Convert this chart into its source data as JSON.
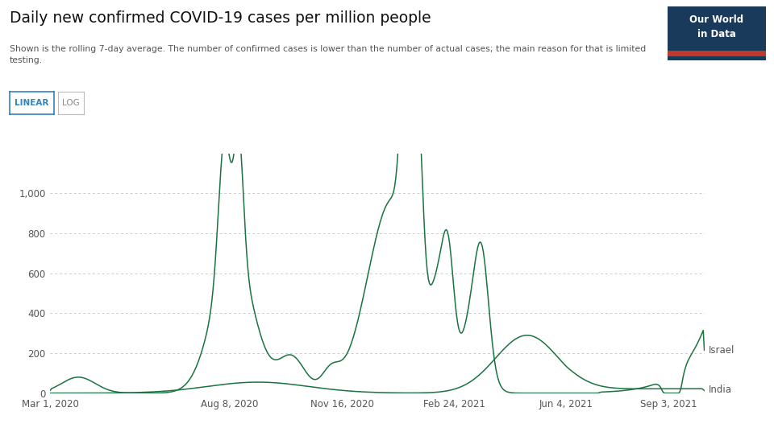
{
  "title": "Daily new confirmed COVID-19 cases per million people",
  "subtitle": "Shown is the rolling 7-day average. The number of confirmed cases is lower than the number of actual cases; the main reason for that is limited\ntesting.",
  "line_color": "#1a7340",
  "background_color": "#ffffff",
  "ylim": [
    0,
    1200
  ],
  "yticks": [
    0,
    200,
    400,
    600,
    800,
    1000
  ],
  "xtick_labels": [
    "Mar 1, 2020",
    "Aug 8, 2020",
    "Nov 16, 2020",
    "Feb 24, 2021",
    "Jun 4, 2021",
    "Sep 3, 2021"
  ],
  "owid_box_color": "#1a3a5c",
  "owid_text": "Our World\nin Data",
  "owid_red": "#c0392b",
  "israel_label": "Israel",
  "india_label": "India",
  "linear_button_color": "#3182bd",
  "log_button_color": "#888888",
  "grid_color": "#cccccc"
}
